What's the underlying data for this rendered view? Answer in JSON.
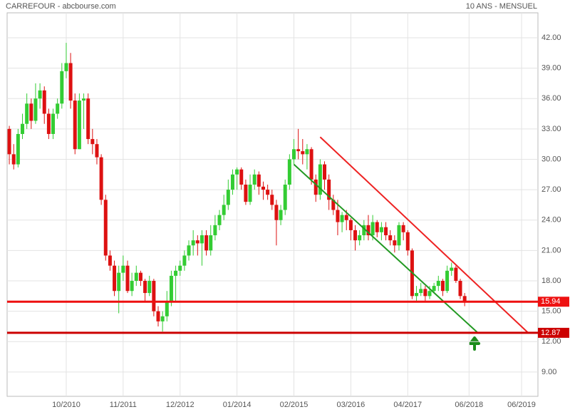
{
  "chart_data": {
    "type": "candlestick",
    "title": "CARREFOUR - abcbourse.com",
    "subtitle": "10 ANS - MENSUEL",
    "categories": [
      null,
      null,
      null,
      null,
      null,
      null,
      null,
      null,
      null,
      null,
      null,
      null,
      null,
      "10/2010",
      null,
      null,
      null,
      null,
      null,
      null,
      null,
      null,
      null,
      null,
      null,
      null,
      "11/2011",
      null,
      null,
      null,
      null,
      null,
      null,
      null,
      null,
      null,
      null,
      null,
      null,
      "12/2012",
      null,
      null,
      null,
      null,
      null,
      null,
      null,
      null,
      null,
      null,
      null,
      null,
      "01/2014",
      null,
      null,
      null,
      null,
      null,
      null,
      null,
      null,
      null,
      null,
      null,
      null,
      "02/2015",
      null,
      null,
      null,
      null,
      null,
      null,
      null,
      null,
      null,
      null,
      null,
      null,
      "03/2016",
      null,
      null,
      null,
      null,
      null,
      null,
      null,
      null,
      null,
      null,
      null,
      null,
      "04/2017",
      null,
      null,
      null,
      null,
      null,
      null,
      null,
      null,
      null,
      null,
      null,
      null,
      null,
      "06/2018",
      null,
      null,
      null,
      null,
      null,
      null,
      null,
      null,
      null,
      null,
      null,
      "06/2019",
      null,
      null,
      null
    ],
    "open": [
      33,
      30.5,
      29.5,
      32.5,
      33.5,
      35.5,
      33.8,
      36,
      36.8,
      34.5,
      32.5,
      34.5,
      35.5,
      38.7,
      39.5,
      35.8,
      31,
      35.8,
      36,
      32,
      31.5,
      30.2,
      26,
      20.5,
      19.5,
      17,
      18.8,
      19.5,
      17,
      18,
      18.8,
      18,
      16.8,
      18,
      15,
      14,
      14.5,
      16,
      18.5,
      19,
      19.5,
      20.5,
      21.5,
      22,
      21.7,
      22.5,
      21,
      22.5,
      23.5,
      24.5,
      25.5,
      27,
      28.5,
      29,
      27.5,
      25.8,
      27.5,
      28.5,
      27.3,
      27,
      26.5,
      25.5,
      24,
      25,
      27.5,
      30,
      31,
      30.8,
      30.5,
      31,
      28,
      26.5,
      29.5,
      28,
      26,
      25,
      23.8,
      24.5,
      24,
      23,
      22,
      22.5,
      23.5,
      22.5,
      23.8,
      22.8,
      23.3,
      22.5,
      22,
      21.5,
      23.5,
      22.8,
      21,
      16.5,
      16.8,
      17.2,
      16.5,
      17,
      17.5,
      18,
      17,
      19,
      19.3,
      18,
      16.5,
      null,
      null,
      null,
      null,
      null,
      null,
      null,
      null,
      null,
      null,
      null,
      null,
      null,
      null,
      null,
      null
    ],
    "high": [
      33.3,
      31.5,
      33,
      34.5,
      36.5,
      36,
      37.5,
      37.5,
      37.2,
      35,
      35,
      36,
      39.5,
      41.5,
      40.5,
      36.5,
      36.5,
      36.5,
      36.5,
      33,
      32,
      30.5,
      26.5,
      21,
      20,
      19.5,
      20.5,
      20,
      18.8,
      19.5,
      19,
      18.2,
      18.5,
      18.2,
      15.5,
      15,
      17,
      19,
      19.5,
      20,
      21,
      22,
      23,
      22.5,
      23,
      23,
      23.5,
      24.5,
      25,
      26.5,
      28,
      29,
      29.2,
      29.2,
      28,
      28.5,
      29,
      28.8,
      27.8,
      27.5,
      27,
      26,
      25.5,
      28,
      30.5,
      32,
      33,
      32,
      31.5,
      31.2,
      28.5,
      30,
      29.8,
      28.5,
      26.5,
      26,
      24.8,
      25,
      24.2,
      23.5,
      23,
      24,
      24.5,
      24.5,
      24,
      23.8,
      23.8,
      23,
      22.5,
      23.8,
      23.8,
      23,
      21.2,
      17.5,
      17.8,
      17.5,
      17.5,
      17.8,
      18.5,
      18.2,
      19.5,
      19.8,
      19.5,
      18.2,
      16.8,
      null,
      null,
      null,
      null,
      null,
      null,
      null,
      null,
      null,
      null,
      null,
      null,
      null,
      null,
      null,
      null
    ],
    "low": [
      29.5,
      29,
      29.2,
      32,
      33,
      33,
      33.5,
      35,
      33.5,
      32,
      32,
      34,
      35,
      38,
      35,
      30.5,
      31,
      33,
      31.5,
      30.5,
      29.5,
      25.5,
      20,
      19,
      16.5,
      14.8,
      18,
      16.8,
      16.5,
      17.5,
      17.5,
      16,
      16.5,
      14.5,
      13.5,
      13,
      14,
      15.5,
      16,
      18.5,
      19,
      20,
      20.5,
      20.5,
      19.5,
      20.5,
      20.5,
      22,
      23,
      24,
      25,
      26.5,
      27,
      27,
      25.5,
      25.5,
      27,
      26.5,
      26,
      26,
      25,
      21.5,
      23.5,
      24.5,
      27,
      29.5,
      30,
      29.5,
      29,
      27.5,
      25.8,
      26,
      27,
      25,
      24.5,
      22.5,
      22.8,
      23,
      22,
      21,
      21.5,
      22,
      22,
      22,
      22.3,
      22,
      22,
      21.5,
      20.8,
      21,
      22,
      20.5,
      16.2,
      16,
      16.5,
      16,
      16.2,
      16.8,
      17,
      16.5,
      16.8,
      18.5,
      17.8,
      16.2,
      15.5,
      null,
      null,
      null,
      null,
      null,
      null,
      null,
      null,
      null,
      null,
      null,
      null,
      null,
      null,
      null,
      null
    ],
    "close": [
      30.5,
      29.5,
      32.5,
      33.5,
      35.5,
      33.8,
      36,
      36.8,
      34.5,
      32.5,
      34.5,
      35.5,
      38.7,
      39.5,
      35.8,
      31,
      35.8,
      36,
      32,
      31.5,
      30.2,
      26,
      20.5,
      19.5,
      17,
      18.8,
      19.5,
      17,
      18,
      18.8,
      18,
      16.8,
      18,
      15,
      14,
      14.5,
      16,
      18.5,
      19,
      19.5,
      20.5,
      21.5,
      22,
      21.7,
      22.5,
      21,
      22.5,
      23.5,
      24.5,
      25.5,
      27,
      28.5,
      29,
      27.5,
      25.8,
      27.5,
      28.5,
      27.3,
      27,
      26.5,
      25.5,
      24,
      25,
      27.5,
      30,
      31,
      30.8,
      30.5,
      31,
      28,
      26.5,
      29.5,
      28,
      26,
      25,
      23.8,
      24.5,
      24,
      23,
      22,
      22.5,
      23.5,
      22.5,
      23.8,
      22.8,
      23.3,
      22.5,
      22,
      21.5,
      23.5,
      22.8,
      21,
      16.5,
      16.8,
      17.2,
      16.5,
      17,
      17.5,
      18,
      17,
      19,
      19.3,
      18,
      16.5,
      16,
      null,
      null,
      null,
      null,
      null,
      null,
      null,
      null,
      null,
      null,
      null,
      null,
      null,
      null,
      null,
      null
    ],
    "up_color": "#33cc33",
    "down_color": "#dd1111",
    "ylim": [
      6.6,
      44.46
    ],
    "yticks": [
      {
        "value": 9,
        "label": "9.00"
      },
      {
        "value": 12,
        "label": "12.00"
      },
      {
        "value": 15,
        "label": "15.00"
      },
      {
        "value": 18,
        "label": "18.00"
      },
      {
        "value": 21,
        "label": "21.00"
      },
      {
        "value": 24,
        "label": "24.00"
      },
      {
        "value": 27,
        "label": "27.00"
      },
      {
        "value": 30,
        "label": "30.00"
      },
      {
        "value": 33,
        "label": "33.00"
      },
      {
        "value": 36,
        "label": "36.00"
      },
      {
        "value": 39,
        "label": "39.00"
      },
      {
        "value": 42,
        "label": "42.00"
      }
    ],
    "grid": true,
    "levels": [
      {
        "value": 15.94,
        "color": "#ee1111"
      },
      {
        "value": 12.87,
        "color": "#cc0000"
      }
    ],
    "trend_lines": [
      {
        "color": "#ee2222",
        "start": [
          71,
          32.2
        ],
        "end": [
          118.5,
          12.87
        ]
      },
      {
        "color": "#229922",
        "start": [
          65,
          29.5
        ],
        "end": [
          107,
          12.87
        ]
      }
    ]
  }
}
